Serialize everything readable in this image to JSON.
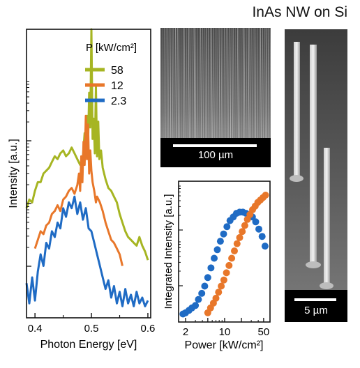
{
  "figure": {
    "title": "InAs NW on Si",
    "sem_top_scale": "100 µm",
    "sem_side_scale": "5 µm"
  },
  "colors": {
    "green": "#a6b522",
    "orange": "#e8772a",
    "blue": "#1f6bc4"
  },
  "chart_data": [
    {
      "type": "line",
      "xlabel": "Photon Energy [eV]",
      "ylabel": "Intensity [a.u.]",
      "xlim": [
        0.385,
        0.605
      ],
      "ylim": [
        0,
        1
      ],
      "y_scale": "log",
      "xticks": [
        0.4,
        0.5,
        0.6
      ],
      "xtick_labels": [
        "0.4",
        "0.5",
        "0.6"
      ],
      "legend": {
        "title": "P [kW/cm²]",
        "placement": "top-right"
      },
      "series": [
        {
          "name": "58",
          "color": "#a6b522",
          "x": [
            0.385,
            0.39,
            0.395,
            0.4,
            0.405,
            0.41,
            0.415,
            0.42,
            0.425,
            0.43,
            0.435,
            0.44,
            0.445,
            0.45,
            0.455,
            0.46,
            0.465,
            0.47,
            0.475,
            0.48,
            0.485,
            0.488,
            0.49,
            0.492,
            0.494,
            0.496,
            0.498,
            0.5,
            0.502,
            0.504,
            0.506,
            0.508,
            0.51,
            0.512,
            0.514,
            0.517,
            0.52,
            0.525,
            0.53,
            0.535,
            0.54,
            0.545,
            0.55,
            0.555,
            0.56,
            0.565,
            0.57,
            0.575,
            0.58,
            0.585,
            0.59,
            0.595,
            0.6
          ],
          "y": [
            0.38,
            0.41,
            0.4,
            0.44,
            0.47,
            0.47,
            0.5,
            0.51,
            0.52,
            0.54,
            0.56,
            0.55,
            0.57,
            0.58,
            0.56,
            0.57,
            0.59,
            0.57,
            0.55,
            0.53,
            0.56,
            0.64,
            0.58,
            0.7,
            0.6,
            0.78,
            0.66,
            1.0,
            0.62,
            0.69,
            0.57,
            0.8,
            0.56,
            0.68,
            0.55,
            0.58,
            0.52,
            0.48,
            0.45,
            0.44,
            0.42,
            0.4,
            0.36,
            0.33,
            0.3,
            0.28,
            0.27,
            0.26,
            0.25,
            0.28,
            0.25,
            0.23,
            0.2
          ]
        },
        {
          "name": "12",
          "color": "#e8772a",
          "x": [
            0.4,
            0.405,
            0.41,
            0.415,
            0.42,
            0.425,
            0.43,
            0.435,
            0.44,
            0.445,
            0.45,
            0.455,
            0.46,
            0.465,
            0.47,
            0.475,
            0.478,
            0.48,
            0.482,
            0.484,
            0.486,
            0.488,
            0.49,
            0.492,
            0.494,
            0.496,
            0.498,
            0.5,
            0.502,
            0.505,
            0.508,
            0.51,
            0.515,
            0.52,
            0.525,
            0.53,
            0.535,
            0.54,
            0.545,
            0.55,
            0.555
          ],
          "y": [
            0.24,
            0.27,
            0.3,
            0.29,
            0.32,
            0.33,
            0.36,
            0.37,
            0.39,
            0.37,
            0.41,
            0.42,
            0.44,
            0.45,
            0.43,
            0.46,
            0.5,
            0.44,
            0.56,
            0.47,
            0.61,
            0.53,
            0.7,
            0.55,
            0.67,
            0.5,
            0.58,
            0.51,
            0.47,
            0.44,
            0.4,
            0.42,
            0.4,
            0.37,
            0.33,
            0.3,
            0.27,
            0.26,
            0.24,
            0.22,
            0.18
          ]
        },
        {
          "name": "2.3",
          "color": "#1f6bc4",
          "x": [
            0.385,
            0.39,
            0.395,
            0.4,
            0.405,
            0.41,
            0.415,
            0.42,
            0.425,
            0.43,
            0.435,
            0.44,
            0.445,
            0.45,
            0.455,
            0.46,
            0.465,
            0.47,
            0.475,
            0.48,
            0.485,
            0.49,
            0.495,
            0.5,
            0.505,
            0.51,
            0.515,
            0.52,
            0.525,
            0.53,
            0.535,
            0.54,
            0.545,
            0.55,
            0.555,
            0.56,
            0.565,
            0.57,
            0.575,
            0.58,
            0.585,
            0.59,
            0.595,
            0.6
          ],
          "y": [
            0.12,
            0.05,
            0.14,
            0.06,
            0.16,
            0.22,
            0.18,
            0.26,
            0.24,
            0.3,
            0.28,
            0.33,
            0.31,
            0.38,
            0.35,
            0.4,
            0.38,
            0.42,
            0.36,
            0.4,
            0.34,
            0.38,
            0.31,
            0.3,
            0.26,
            0.22,
            0.18,
            0.14,
            0.1,
            0.13,
            0.07,
            0.11,
            0.05,
            0.09,
            0.04,
            0.1,
            0.05,
            0.08,
            0.04,
            0.09,
            0.05,
            0.07,
            0.04,
            0.06
          ]
        }
      ]
    },
    {
      "type": "scatter",
      "xlabel": "Power [kW/cm²]",
      "ylabel": "Integrated Intensity [a.u.]",
      "x_scale": "log",
      "xlim": [
        1.5,
        65
      ],
      "ylim": [
        0,
        1
      ],
      "y_scale": "log",
      "xticks": [
        2,
        5,
        10,
        20,
        50
      ],
      "xtick_labels": [
        "2",
        "",
        "10",
        "",
        "50"
      ],
      "series": [
        {
          "name": "blue",
          "color": "#1f6bc4",
          "x": [
            1.8,
            2.0,
            2.3,
            2.6,
            3.0,
            3.4,
            3.9,
            4.4,
            5.0,
            5.7,
            6.5,
            7.4,
            8.4,
            9.6,
            11,
            12.5,
            14.3,
            16.3,
            18.6,
            21.2,
            24.2,
            27.6,
            31.5,
            36,
            41,
            47,
            53
          ],
          "y": [
            0.02,
            0.03,
            0.05,
            0.07,
            0.09,
            0.14,
            0.19,
            0.25,
            0.32,
            0.4,
            0.48,
            0.55,
            0.62,
            0.68,
            0.74,
            0.79,
            0.82,
            0.85,
            0.86,
            0.86,
            0.85,
            0.84,
            0.82,
            0.78,
            0.72,
            0.66,
            0.58
          ]
        },
        {
          "name": "orange",
          "color": "#e8772a",
          "x": [
            5.0,
            5.6,
            6.3,
            7.0,
            7.8,
            8.7,
            9.7,
            10.8,
            12,
            13.4,
            15,
            16.7,
            18.6,
            20.7,
            23,
            25.6,
            28.5,
            31.7,
            35.3,
            39.3,
            43.7,
            48.6,
            54
          ],
          "y": [
            0.03,
            0.07,
            0.11,
            0.15,
            0.2,
            0.25,
            0.3,
            0.36,
            0.42,
            0.48,
            0.54,
            0.6,
            0.65,
            0.7,
            0.75,
            0.8,
            0.84,
            0.88,
            0.91,
            0.94,
            0.96,
            0.98,
            1.0
          ]
        }
      ]
    }
  ]
}
